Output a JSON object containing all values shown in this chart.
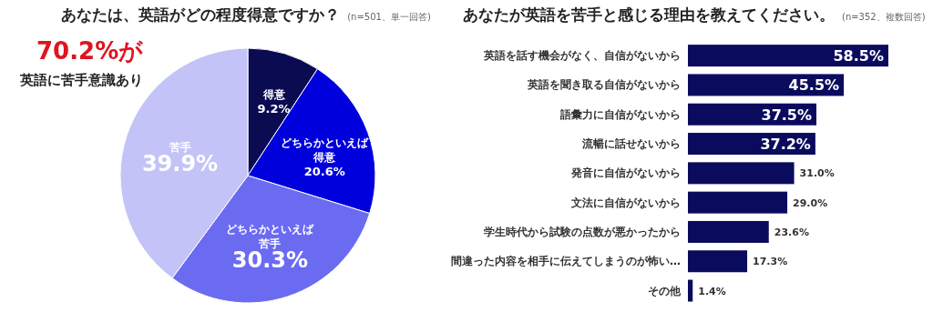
{
  "chart_data": [
    {
      "type": "pie",
      "title": "あなたは、英語がどの程度得意ですか？",
      "subtitle": "(n=501、単一回答)",
      "categories": [
        "得意",
        "どちらかといえば得意",
        "どちらかといえば苦手",
        "苦手"
      ],
      "values": [
        9.2,
        20.6,
        30.3,
        39.9
      ],
      "value_labels": [
        "9.2%",
        "20.6%",
        "30.3%",
        "39.9%"
      ],
      "colors": [
        "#0b0b52",
        "#0000dc",
        "#6b6bf2",
        "#c3c3f7"
      ],
      "annotations": [
        "70.2%が",
        "英語に苦手意識あり"
      ]
    },
    {
      "type": "bar",
      "orientation": "horizontal",
      "title": "あなたが英語を苦手と感じる理由を教えてください。",
      "subtitle": "(n=352、複数回答)",
      "categories": [
        "英語を話す機会がなく、自信がないから",
        "英語を聞き取る自信がないから",
        "語彙力に自信がないから",
        "流暢に話せないから",
        "発音に自信がないから",
        "文法に自信がないから",
        "学生時代から試験の点数が悪かったから",
        "間違った内容を相手に伝えてしまうのが怖い…",
        "その他"
      ],
      "values": [
        58.5,
        45.5,
        37.5,
        37.2,
        31.0,
        29.0,
        23.6,
        17.3,
        1.4
      ],
      "value_labels": [
        "58.5%",
        "45.5%",
        "37.5%",
        "37.2%",
        "31.0%",
        "29.0%",
        "23.6%",
        "17.3%",
        "1.4%"
      ],
      "color": "#0b0b5e"
    }
  ]
}
